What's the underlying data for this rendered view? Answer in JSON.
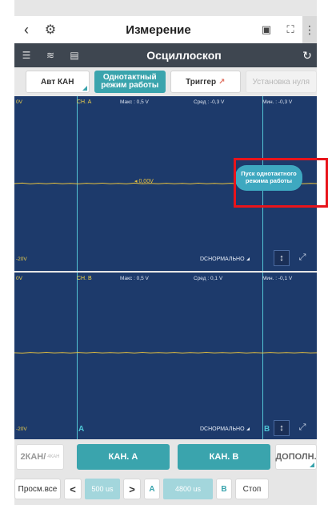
{
  "header": {
    "title": "Измерение",
    "back_icon": "chevron-left-icon",
    "logo_icon": "vci-logo-icon"
  },
  "toolbar": {
    "title": "Осциллоскоп"
  },
  "modes": {
    "auto_channel": "Авт КАН",
    "single_mode": "Однотактный режим работы",
    "trigger": "Триггер",
    "zero_setup": "Установка нуля"
  },
  "scope1": {
    "left_edge": "0V",
    "channel": "CH. A",
    "max": "Макс : 0,5 V",
    "avg": "Сред : -0,3 V",
    "min": "Мин. : -0,3 V",
    "marker": "0,00V",
    "bottom_edge": "-20V",
    "mode": "DСНОРМАЛЬНО",
    "single_start_button": "Пуск однотактного режима работы"
  },
  "scope2": {
    "left_edge": "0V",
    "channel": "CH. B",
    "max": "Макс : 0,5 V",
    "avg": "Сред : 0,1 V",
    "min": "Мин. : -0,1 V",
    "bottom_edge": "-20V",
    "mode": "DСНОРМАЛЬНО",
    "label_a": "A",
    "label_b": "B"
  },
  "channels": {
    "two_channel": "2КАН/",
    "two_channel_sub": "4КАН",
    "channel_a": "КАН. А",
    "channel_b": "КАН. В",
    "more": "ДОПОЛН."
  },
  "bottom": {
    "view_all": "Просм.все",
    "prev": "<",
    "time_a": "500 us",
    "next": ">",
    "a": "A",
    "time_b": "4800 us",
    "b": "B",
    "stop": "Стоп"
  },
  "colors": {
    "scope_bg": "#1d3a6b",
    "accent": "#3aa4ad",
    "trace": "#e8c23e",
    "highlight": "#e8141b"
  }
}
